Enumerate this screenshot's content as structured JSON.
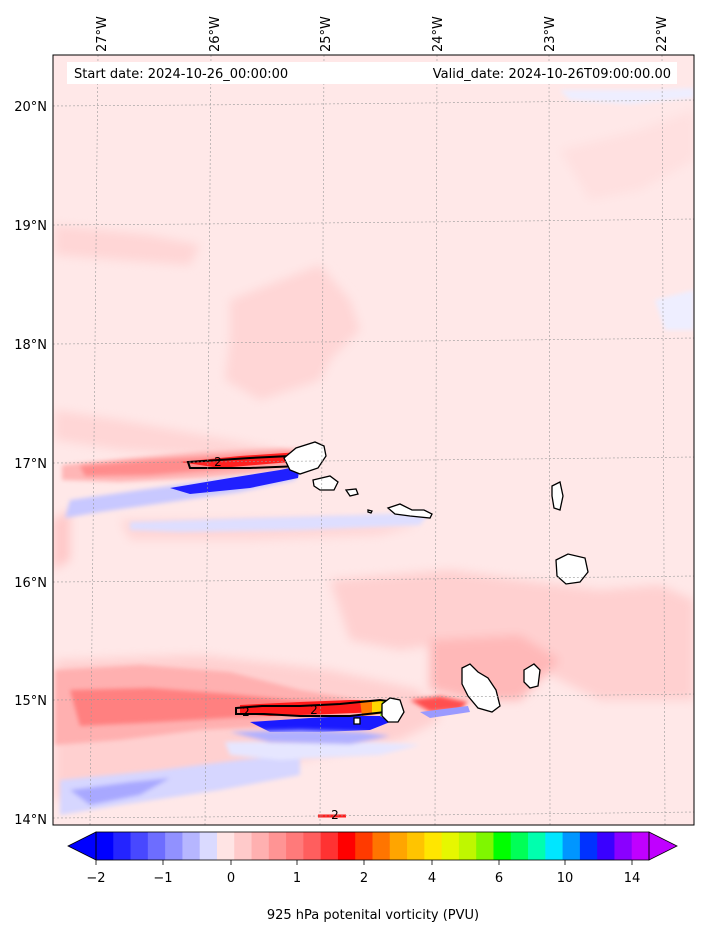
{
  "header": {
    "start_date": "Start date: 2024-10-26_00:00:00",
    "valid_date": "Valid_date: 2024-10-26T09:00:00.00"
  },
  "axes": {
    "lon_labels": [
      "27°W",
      "26°W",
      "25°W",
      "24°W",
      "23°W",
      "22°W"
    ],
    "lat_labels": [
      "20°N",
      "19°N",
      "18°N",
      "17°N",
      "16°N",
      "15°N",
      "14°N"
    ]
  },
  "contour_labels": [
    "2",
    "2",
    "2",
    "2"
  ],
  "colorbar": {
    "tick_labels": [
      "−2",
      "−1",
      "0",
      "1",
      "2",
      "4",
      "6",
      "10",
      "14"
    ],
    "label": "925 hPa potenital vorticity (PVU)",
    "colors": [
      "#0000ff",
      "#2424ff",
      "#4848ff",
      "#6d6dff",
      "#9191ff",
      "#b6b6ff",
      "#dadaff",
      "#ffe4e4",
      "#ffcaca",
      "#ffb0b0",
      "#ff9494",
      "#ff7a7a",
      "#ff5e5e",
      "#ff3232",
      "#ff0000",
      "#ff3a00",
      "#ff7500",
      "#ffa500",
      "#ffc400",
      "#ffe600",
      "#e6f700",
      "#bff700",
      "#7ff700",
      "#00ff00",
      "#00ff57",
      "#00ffae",
      "#00e6ff",
      "#0096ff",
      "#0032ff",
      "#3a00ff",
      "#8a00ff",
      "#c000ff"
    ]
  },
  "palette": {
    "background_pv": "#ffe8e8",
    "light_pink": "#ffd0d0",
    "pink": "#ff9c9c",
    "red": "#ff2a2a",
    "blue": "#0a0aff",
    "light_blue": "#c6c6ff",
    "very_light_blue": "#eeeeff"
  }
}
